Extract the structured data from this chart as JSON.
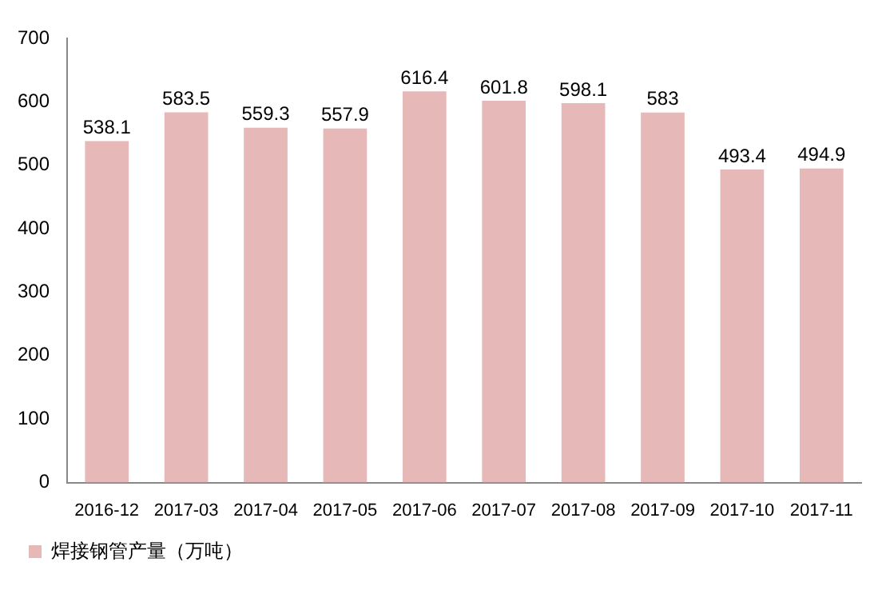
{
  "chart_data": {
    "type": "bar",
    "categories": [
      "2016-12",
      "2017-03",
      "2017-04",
      "2017-05",
      "2017-06",
      "2017-07",
      "2017-08",
      "2017-09",
      "2017-10",
      "2017-11"
    ],
    "series": [
      {
        "name": "焊接钢管产量（万吨）",
        "color": "#e6b8b7",
        "values": [
          538.1,
          583.5,
          559.3,
          557.9,
          616.4,
          601.8,
          598.1,
          583,
          493.4,
          494.9
        ]
      }
    ],
    "ylim": [
      0,
      700
    ],
    "yticks": [
      0,
      100,
      200,
      300,
      400,
      500,
      600,
      700
    ],
    "grid": false,
    "legend": "bottom left",
    "data_labels": true
  }
}
